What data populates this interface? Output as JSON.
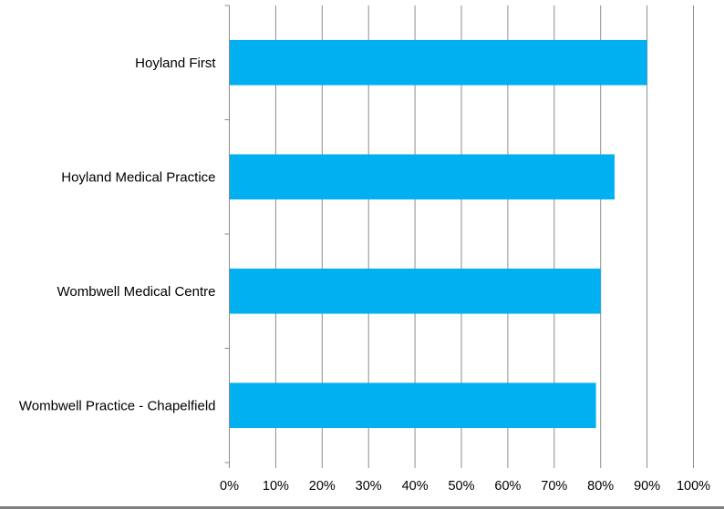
{
  "chart_data": {
    "type": "bar",
    "orientation": "horizontal",
    "categories": [
      "Hoyland First",
      "Hoyland Medical Practice",
      "Wombwell Medical Centre",
      "Wombwell Practice - Chapelfield"
    ],
    "values": [
      90,
      83,
      80,
      79
    ],
    "value_unit": "%",
    "xlim": [
      0,
      100
    ],
    "xticks": [
      0,
      10,
      20,
      30,
      40,
      50,
      60,
      70,
      80,
      90,
      100
    ],
    "xtick_labels": [
      "0%",
      "10%",
      "20%",
      "30%",
      "40%",
      "50%",
      "60%",
      "70%",
      "80%",
      "90%",
      "100%"
    ],
    "title": "",
    "xlabel": "",
    "ylabel": "",
    "grid": "vertical",
    "legend": "none",
    "bar_color": "#00B0F0",
    "grid_color": "#8c8c8c",
    "axis_color": "#8c8c8c"
  }
}
